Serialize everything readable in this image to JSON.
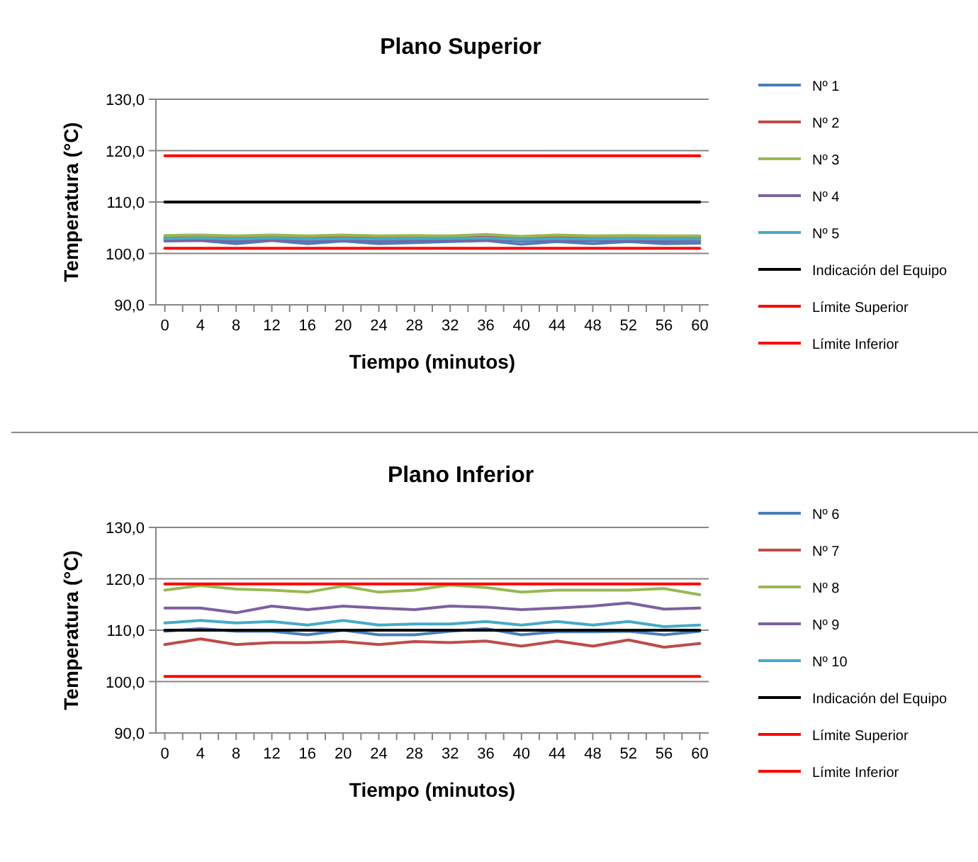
{
  "chart_data": [
    {
      "type": "line",
      "title": "Plano Superior",
      "xlabel": "Tiempo (minutos)",
      "ylabel": "Temperatura (°C)",
      "x": [
        0,
        4,
        8,
        12,
        16,
        20,
        24,
        28,
        32,
        36,
        40,
        44,
        48,
        52,
        56,
        60
      ],
      "xlim": [
        -1,
        61
      ],
      "xticks": [
        0,
        {
          "value": 2,
          "label": null
        },
        4,
        {
          "value": 6,
          "label": null
        },
        8,
        {
          "value": 10,
          "label": null
        },
        12,
        {
          "value": 14,
          "label": null
        },
        16,
        {
          "value": 18,
          "label": null
        },
        20,
        {
          "value": 22,
          "label": null
        },
        24,
        {
          "value": 26,
          "label": null
        },
        28,
        {
          "value": 30,
          "label": null
        },
        32,
        {
          "value": 34,
          "label": null
        },
        36,
        {
          "value": 38,
          "label": null
        },
        40,
        {
          "value": 42,
          "label": null
        },
        44,
        {
          "value": 46,
          "label": null
        },
        48,
        {
          "value": 50,
          "label": null
        },
        52,
        {
          "value": 54,
          "label": null
        },
        56,
        {
          "value": 58,
          "label": null
        },
        60
      ],
      "ylim": [
        90,
        130
      ],
      "yticks": [
        {
          "value": 90,
          "label": "90,0"
        },
        {
          "value": 100,
          "label": "100,0"
        },
        {
          "value": 110,
          "label": "110,0"
        },
        {
          "value": 120,
          "label": "120,0"
        },
        {
          "value": 130,
          "label": "130,0"
        }
      ],
      "grid": "y",
      "legend": "right",
      "series": [
        {
          "name": "Nº 1",
          "color": "#4a7ebb",
          "values": [
            102.4,
            102.5,
            101.9,
            102.5,
            101.9,
            102.4,
            101.9,
            102.1,
            102.3,
            102.5,
            101.8,
            102.3,
            101.9,
            102.3,
            101.9,
            102.0
          ]
        },
        {
          "name": "Nº 2",
          "color": "#be4b48",
          "values": [
            103.2,
            103.3,
            103.1,
            103.3,
            103.1,
            103.3,
            103.1,
            103.2,
            103.1,
            103.4,
            103.0,
            103.2,
            103.1,
            103.2,
            103.1,
            103.1
          ]
        },
        {
          "name": "Nº 3",
          "color": "#98b954",
          "values": [
            103.5,
            103.6,
            103.4,
            103.6,
            103.4,
            103.6,
            103.4,
            103.5,
            103.4,
            103.7,
            103.3,
            103.6,
            103.4,
            103.5,
            103.4,
            103.4
          ]
        },
        {
          "name": "Nº 4",
          "color": "#7d60a0",
          "values": [
            102.7,
            102.7,
            102.4,
            102.7,
            102.4,
            102.7,
            102.4,
            102.6,
            102.6,
            102.8,
            102.4,
            102.6,
            102.5,
            102.6,
            102.4,
            102.5
          ]
        },
        {
          "name": "Nº 5",
          "color": "#46aac5",
          "values": [
            102.9,
            103.0,
            102.8,
            103.0,
            102.8,
            102.9,
            102.8,
            102.9,
            102.9,
            103.0,
            102.7,
            102.9,
            102.8,
            102.9,
            102.8,
            102.8
          ]
        },
        {
          "name": "Indicación del Equipo",
          "color": "#000000",
          "values": [
            110,
            110,
            110,
            110,
            110,
            110,
            110,
            110,
            110,
            110,
            110,
            110,
            110,
            110,
            110,
            110
          ]
        },
        {
          "name": "Límite Superior",
          "color": "#ff0000",
          "values": [
            119,
            119,
            119,
            119,
            119,
            119,
            119,
            119,
            119,
            119,
            119,
            119,
            119,
            119,
            119,
            119
          ]
        },
        {
          "name": "Límite Inferior",
          "color": "#ff0000",
          "values": [
            101,
            101,
            101,
            101,
            101,
            101,
            101,
            101,
            101,
            101,
            101,
            101,
            101,
            101,
            101,
            101
          ]
        }
      ]
    },
    {
      "type": "line",
      "title": "Plano Inferior",
      "xlabel": "Tiempo (minutos)",
      "ylabel": "Temperatura (°C)",
      "x": [
        0,
        4,
        8,
        12,
        16,
        20,
        24,
        28,
        32,
        36,
        40,
        44,
        48,
        52,
        56,
        60
      ],
      "xlim": [
        -1,
        61
      ],
      "xticks": [
        0,
        {
          "value": 2,
          "label": null
        },
        4,
        {
          "value": 6,
          "label": null
        },
        8,
        {
          "value": 10,
          "label": null
        },
        12,
        {
          "value": 14,
          "label": null
        },
        16,
        {
          "value": 18,
          "label": null
        },
        20,
        {
          "value": 22,
          "label": null
        },
        24,
        {
          "value": 26,
          "label": null
        },
        28,
        {
          "value": 30,
          "label": null
        },
        32,
        {
          "value": 34,
          "label": null
        },
        36,
        {
          "value": 38,
          "label": null
        },
        40,
        {
          "value": 42,
          "label": null
        },
        44,
        {
          "value": 46,
          "label": null
        },
        48,
        {
          "value": 50,
          "label": null
        },
        52,
        {
          "value": 54,
          "label": null
        },
        56,
        {
          "value": 58,
          "label": null
        },
        60
      ],
      "ylim": [
        90,
        130
      ],
      "yticks": [
        {
          "value": 90,
          "label": "90,0"
        },
        {
          "value": 100,
          "label": "100,0"
        },
        {
          "value": 110,
          "label": "110,0"
        },
        {
          "value": 120,
          "label": "120,0"
        },
        {
          "value": 130,
          "label": "130,0"
        }
      ],
      "grid": "y",
      "legend": "right",
      "series": [
        {
          "name": "Nº 6",
          "color": "#4a7ebb",
          "values": [
            109.8,
            110.3,
            109.8,
            109.8,
            109.1,
            110.0,
            109.1,
            109.1,
            109.8,
            110.3,
            109.1,
            109.7,
            109.7,
            109.8,
            109.1,
            109.8
          ]
        },
        {
          "name": "Nº 7",
          "color": "#be4b48",
          "values": [
            107.2,
            108.3,
            107.2,
            107.6,
            107.6,
            107.8,
            107.2,
            107.8,
            107.6,
            107.9,
            106.9,
            107.9,
            106.9,
            108.1,
            106.7,
            107.4
          ]
        },
        {
          "name": "Nº 8",
          "color": "#98b954",
          "values": [
            117.8,
            118.7,
            118.0,
            117.8,
            117.4,
            118.6,
            117.4,
            117.8,
            118.8,
            118.3,
            117.4,
            117.8,
            117.8,
            117.8,
            118.1,
            116.9
          ]
        },
        {
          "name": "Nº 9",
          "color": "#7d60a0",
          "values": [
            114.3,
            114.3,
            113.4,
            114.7,
            114.0,
            114.7,
            114.3,
            114.0,
            114.7,
            114.5,
            114.0,
            114.3,
            114.7,
            115.3,
            114.1,
            114.3
          ]
        },
        {
          "name": "Nº 10",
          "color": "#46aac5",
          "values": [
            111.4,
            111.9,
            111.4,
            111.7,
            111.0,
            111.9,
            111.0,
            111.2,
            111.2,
            111.7,
            111.0,
            111.7,
            111.0,
            111.7,
            110.7,
            111.0
          ]
        },
        {
          "name": "Indicación del Equipo",
          "color": "#000000",
          "values": [
            110,
            110,
            110,
            110,
            110,
            110,
            110,
            110,
            110,
            110,
            110,
            110,
            110,
            110,
            110,
            110
          ]
        },
        {
          "name": "Límite Superior",
          "color": "#ff0000",
          "values": [
            119,
            119,
            119,
            119,
            119,
            119,
            119,
            119,
            119,
            119,
            119,
            119,
            119,
            119,
            119,
            119
          ]
        },
        {
          "name": "Límite Inferior",
          "color": "#ff0000",
          "values": [
            101,
            101,
            101,
            101,
            101,
            101,
            101,
            101,
            101,
            101,
            101,
            101,
            101,
            101,
            101,
            101
          ]
        }
      ]
    }
  ]
}
